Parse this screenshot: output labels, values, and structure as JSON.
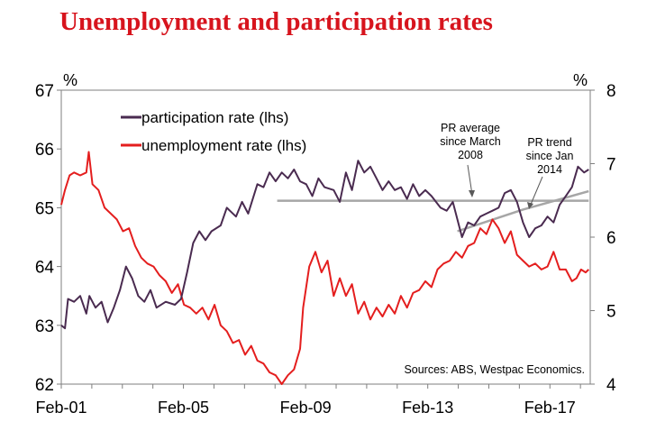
{
  "chart_data": {
    "type": "line",
    "title": "Unemployment and participation rates",
    "y_left_unit": "%",
    "y_right_unit": "%",
    "y_left_range": [
      62,
      67
    ],
    "y_right_range": [
      4,
      8
    ],
    "y_left_ticks": [
      "62",
      "63",
      "64",
      "65",
      "66",
      "67"
    ],
    "y_right_ticks": [
      "4",
      "5",
      "6",
      "7",
      "8"
    ],
    "x_range": [
      2001.08,
      2018.4
    ],
    "x_tick_labels": [
      {
        "label": "Feb-01",
        "x": 2001.08
      },
      {
        "label": "Feb-05",
        "x": 2005.08
      },
      {
        "label": "Feb-09",
        "x": 2009.08
      },
      {
        "label": "Feb-13",
        "x": 2013.08
      },
      {
        "label": "Feb-17",
        "x": 2017.08
      }
    ],
    "legend": [
      {
        "label": "participation rate (lhs)",
        "color": "#4a2b50"
      },
      {
        "label": "unemployment rate (lhs)",
        "color": "#e41e1e"
      }
    ],
    "annotations": {
      "pr_average": [
        "PR average",
        "since March",
        "2008"
      ],
      "pr_trend": [
        "PR trend",
        "since Jan",
        "2014"
      ],
      "source": "Sources: ABS, Westpac Economics."
    },
    "series": [
      {
        "name": "participation rate (lhs)",
        "axis": "left",
        "color": "#4a2b50",
        "points": [
          [
            2001.08,
            63.0
          ],
          [
            2001.2,
            62.95
          ],
          [
            2001.3,
            63.45
          ],
          [
            2001.5,
            63.4
          ],
          [
            2001.7,
            63.5
          ],
          [
            2001.9,
            63.2
          ],
          [
            2002.0,
            63.5
          ],
          [
            2002.2,
            63.3
          ],
          [
            2002.4,
            63.4
          ],
          [
            2002.6,
            63.05
          ],
          [
            2002.8,
            63.3
          ],
          [
            2003.0,
            63.6
          ],
          [
            2003.2,
            64.0
          ],
          [
            2003.4,
            63.8
          ],
          [
            2003.6,
            63.5
          ],
          [
            2003.8,
            63.4
          ],
          [
            2004.0,
            63.6
          ],
          [
            2004.2,
            63.3
          ],
          [
            2004.5,
            63.4
          ],
          [
            2004.8,
            63.35
          ],
          [
            2005.0,
            63.45
          ],
          [
            2005.2,
            63.9
          ],
          [
            2005.4,
            64.4
          ],
          [
            2005.6,
            64.6
          ],
          [
            2005.8,
            64.45
          ],
          [
            2006.0,
            64.6
          ],
          [
            2006.3,
            64.7
          ],
          [
            2006.5,
            65.0
          ],
          [
            2006.8,
            64.85
          ],
          [
            2007.0,
            65.1
          ],
          [
            2007.2,
            64.9
          ],
          [
            2007.5,
            65.4
          ],
          [
            2007.7,
            65.35
          ],
          [
            2007.9,
            65.6
          ],
          [
            2008.1,
            65.45
          ],
          [
            2008.3,
            65.6
          ],
          [
            2008.5,
            65.5
          ],
          [
            2008.7,
            65.65
          ],
          [
            2008.9,
            65.45
          ],
          [
            2009.1,
            65.4
          ],
          [
            2009.3,
            65.2
          ],
          [
            2009.5,
            65.5
          ],
          [
            2009.7,
            65.35
          ],
          [
            2010.0,
            65.3
          ],
          [
            2010.2,
            65.1
          ],
          [
            2010.4,
            65.6
          ],
          [
            2010.6,
            65.3
          ],
          [
            2010.8,
            65.8
          ],
          [
            2011.0,
            65.6
          ],
          [
            2011.2,
            65.7
          ],
          [
            2011.4,
            65.5
          ],
          [
            2011.6,
            65.3
          ],
          [
            2011.8,
            65.45
          ],
          [
            2012.0,
            65.3
          ],
          [
            2012.2,
            65.35
          ],
          [
            2012.4,
            65.15
          ],
          [
            2012.6,
            65.4
          ],
          [
            2012.8,
            65.2
          ],
          [
            2013.0,
            65.3
          ],
          [
            2013.2,
            65.2
          ],
          [
            2013.5,
            65.0
          ],
          [
            2013.7,
            64.95
          ],
          [
            2013.9,
            65.1
          ],
          [
            2014.0,
            64.9
          ],
          [
            2014.2,
            64.5
          ],
          [
            2014.4,
            64.75
          ],
          [
            2014.6,
            64.7
          ],
          [
            2014.8,
            64.85
          ],
          [
            2015.0,
            64.9
          ],
          [
            2015.2,
            64.95
          ],
          [
            2015.4,
            65.0
          ],
          [
            2015.6,
            65.25
          ],
          [
            2015.8,
            65.3
          ],
          [
            2016.0,
            65.1
          ],
          [
            2016.2,
            64.75
          ],
          [
            2016.4,
            64.5
          ],
          [
            2016.6,
            64.65
          ],
          [
            2016.8,
            64.7
          ],
          [
            2017.0,
            64.85
          ],
          [
            2017.2,
            64.75
          ],
          [
            2017.4,
            65.05
          ],
          [
            2017.6,
            65.2
          ],
          [
            2017.8,
            65.35
          ],
          [
            2018.0,
            65.7
          ],
          [
            2018.2,
            65.6
          ],
          [
            2018.35,
            65.65
          ]
        ]
      },
      {
        "name": "unemployment rate (lhs)",
        "axis": "left",
        "color": "#e41e1e",
        "points": [
          [
            2001.08,
            65.05
          ],
          [
            2001.2,
            65.3
          ],
          [
            2001.35,
            65.55
          ],
          [
            2001.5,
            65.6
          ],
          [
            2001.7,
            65.55
          ],
          [
            2001.9,
            65.6
          ],
          [
            2001.98,
            65.95
          ],
          [
            2002.1,
            65.4
          ],
          [
            2002.3,
            65.3
          ],
          [
            2002.5,
            65.0
          ],
          [
            2002.7,
            64.9
          ],
          [
            2002.9,
            64.8
          ],
          [
            2003.1,
            64.6
          ],
          [
            2003.3,
            64.65
          ],
          [
            2003.5,
            64.35
          ],
          [
            2003.7,
            64.15
          ],
          [
            2003.9,
            64.05
          ],
          [
            2004.1,
            64.0
          ],
          [
            2004.3,
            63.85
          ],
          [
            2004.5,
            63.75
          ],
          [
            2004.7,
            63.55
          ],
          [
            2004.9,
            63.7
          ],
          [
            2005.1,
            63.35
          ],
          [
            2005.3,
            63.3
          ],
          [
            2005.5,
            63.2
          ],
          [
            2005.7,
            63.3
          ],
          [
            2005.9,
            63.1
          ],
          [
            2006.1,
            63.35
          ],
          [
            2006.3,
            63.0
          ],
          [
            2006.5,
            62.9
          ],
          [
            2006.7,
            62.7
          ],
          [
            2006.9,
            62.75
          ],
          [
            2007.1,
            62.5
          ],
          [
            2007.3,
            62.65
          ],
          [
            2007.5,
            62.4
          ],
          [
            2007.7,
            62.35
          ],
          [
            2007.9,
            62.2
          ],
          [
            2008.1,
            62.15
          ],
          [
            2008.3,
            62.0
          ],
          [
            2008.5,
            62.15
          ],
          [
            2008.7,
            62.25
          ],
          [
            2008.9,
            62.6
          ],
          [
            2009.0,
            63.3
          ],
          [
            2009.2,
            64.0
          ],
          [
            2009.4,
            64.25
          ],
          [
            2009.6,
            63.9
          ],
          [
            2009.8,
            64.1
          ],
          [
            2010.0,
            63.5
          ],
          [
            2010.2,
            63.8
          ],
          [
            2010.4,
            63.5
          ],
          [
            2010.6,
            63.7
          ],
          [
            2010.8,
            63.2
          ],
          [
            2011.0,
            63.4
          ],
          [
            2011.2,
            63.1
          ],
          [
            2011.4,
            63.3
          ],
          [
            2011.6,
            63.15
          ],
          [
            2011.8,
            63.35
          ],
          [
            2012.0,
            63.2
          ],
          [
            2012.2,
            63.5
          ],
          [
            2012.4,
            63.3
          ],
          [
            2012.6,
            63.55
          ],
          [
            2012.8,
            63.6
          ],
          [
            2013.0,
            63.75
          ],
          [
            2013.2,
            63.65
          ],
          [
            2013.4,
            63.95
          ],
          [
            2013.6,
            64.05
          ],
          [
            2013.8,
            64.1
          ],
          [
            2014.0,
            64.25
          ],
          [
            2014.2,
            64.15
          ],
          [
            2014.4,
            64.35
          ],
          [
            2014.6,
            64.4
          ],
          [
            2014.8,
            64.65
          ],
          [
            2015.0,
            64.55
          ],
          [
            2015.2,
            64.8
          ],
          [
            2015.4,
            64.65
          ],
          [
            2015.6,
            64.4
          ],
          [
            2015.8,
            64.6
          ],
          [
            2016.0,
            64.2
          ],
          [
            2016.2,
            64.1
          ],
          [
            2016.4,
            64.0
          ],
          [
            2016.6,
            64.05
          ],
          [
            2016.8,
            63.95
          ],
          [
            2017.0,
            64.0
          ],
          [
            2017.2,
            64.25
          ],
          [
            2017.4,
            63.95
          ],
          [
            2017.6,
            63.95
          ],
          [
            2017.8,
            63.75
          ],
          [
            2017.95,
            63.8
          ],
          [
            2018.1,
            63.95
          ],
          [
            2018.25,
            63.9
          ],
          [
            2018.35,
            63.95
          ]
        ]
      },
      {
        "name": "PR average since March 2008",
        "axis": "left",
        "color": "#a6a6a6",
        "points": [
          [
            2008.15,
            65.12
          ],
          [
            2018.35,
            65.12
          ]
        ]
      },
      {
        "name": "PR trend since Jan 2014",
        "axis": "left",
        "color": "#a6a6a6",
        "points": [
          [
            2014.05,
            64.6
          ],
          [
            2016.2,
            64.97
          ],
          [
            2018.35,
            65.28
          ]
        ]
      }
    ]
  }
}
